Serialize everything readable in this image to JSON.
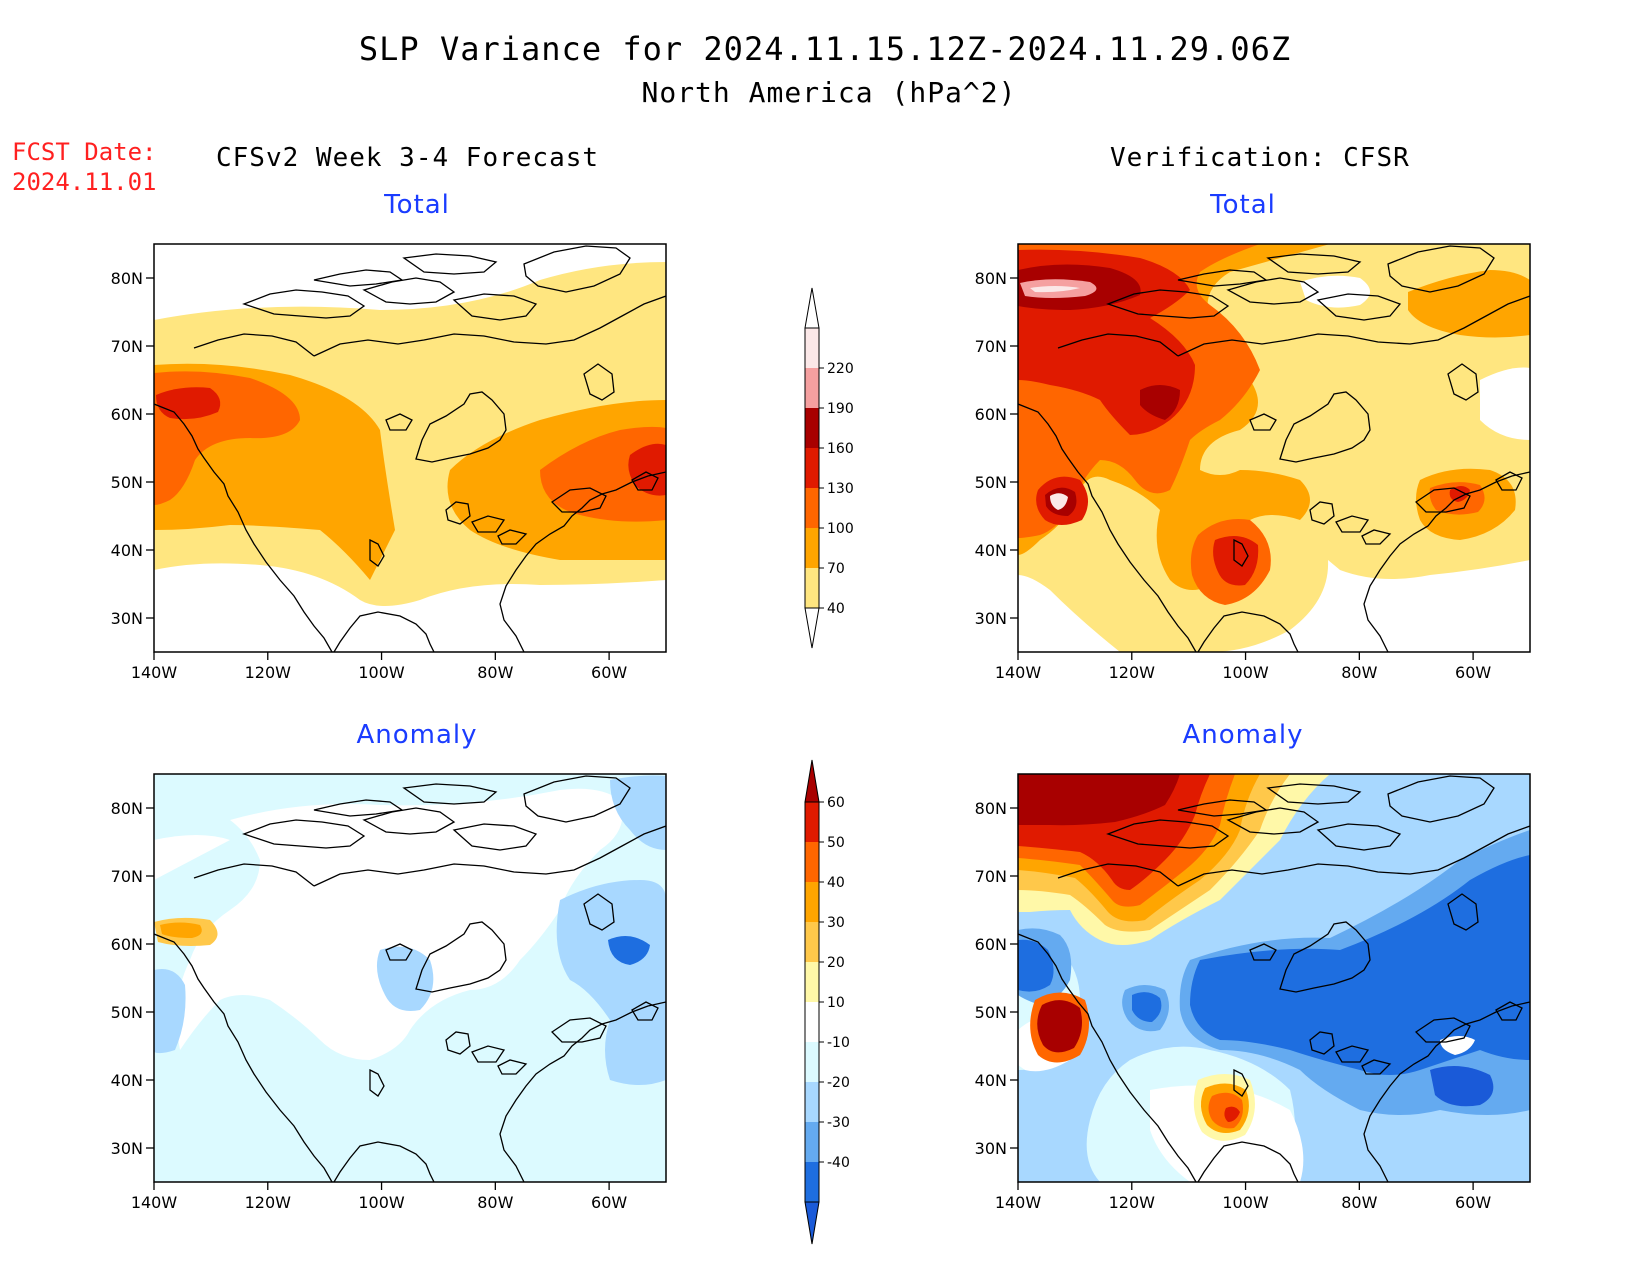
{
  "title": "SLP Variance for 2024.11.15.12Z-2024.11.29.06Z",
  "subtitle": "North America (hPa^2)",
  "fcst_label": "FCST Date:",
  "fcst_date": "2024.11.01",
  "left_header": "CFSv2 Week 3-4 Forecast",
  "right_header": "Verification: CFSR",
  "panels": [
    {
      "id": "fcst-total",
      "title": "Total"
    },
    {
      "id": "verif-total",
      "title": "Total"
    },
    {
      "id": "fcst-anomaly",
      "title": "Anomaly"
    },
    {
      "id": "verif-anomaly",
      "title": "Anomaly"
    }
  ],
  "axes": {
    "lat_ticks": [
      "80N",
      "70N",
      "60N",
      "50N",
      "40N",
      "30N"
    ],
    "lat_values": [
      80,
      70,
      60,
      50,
      40,
      30
    ],
    "lon_ticks": [
      "140W",
      "120W",
      "100W",
      "80W",
      "60W"
    ],
    "lon_values": [
      -140,
      -120,
      -100,
      -80,
      -60
    ],
    "lat_range": [
      25,
      85
    ],
    "lon_range": [
      -140,
      -50
    ]
  },
  "total_colorbar": {
    "levels": [
      "40",
      "70",
      "100",
      "130",
      "160",
      "190",
      "220"
    ],
    "colors": [
      "#ffe680",
      "#ffa500",
      "#ff6600",
      "#e01a00",
      "#a80000",
      "#f5a0a0",
      "#fbe8e8"
    ]
  },
  "anomaly_colorbar": {
    "levels": [
      "60",
      "50",
      "40",
      "30",
      "20",
      "10",
      "-10",
      "-20",
      "-30",
      "-40"
    ],
    "colors": [
      "#a80000",
      "#e01a00",
      "#ff6600",
      "#ffa500",
      "#ffc84a",
      "#fff8a8",
      "#ffffff",
      "#dcfaff",
      "#a8d8ff",
      "#64aaf0",
      "#1e6ee0",
      "#1a5ad8"
    ]
  }
}
